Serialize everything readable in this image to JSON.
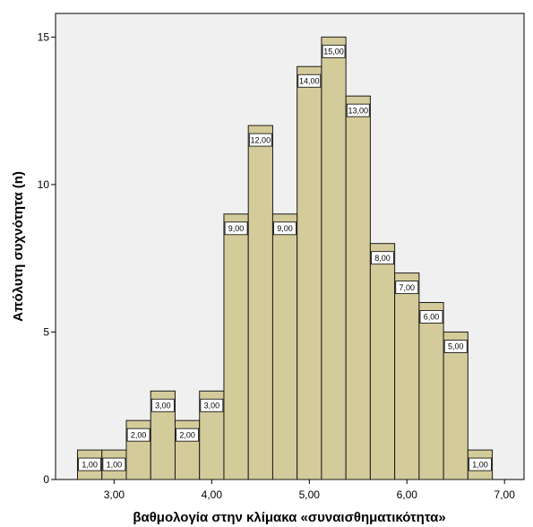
{
  "chart_data": {
    "type": "bar",
    "subtype": "histogram",
    "bins": [
      {
        "start": 2.625,
        "end": 2.875,
        "value": 1,
        "label": "1,00"
      },
      {
        "start": 2.875,
        "end": 3.125,
        "value": 1,
        "label": "1,00"
      },
      {
        "start": 3.125,
        "end": 3.375,
        "value": 2,
        "label": "2,00"
      },
      {
        "start": 3.375,
        "end": 3.625,
        "value": 3,
        "label": "3,00"
      },
      {
        "start": 3.625,
        "end": 3.875,
        "value": 2,
        "label": "2,00"
      },
      {
        "start": 3.875,
        "end": 4.125,
        "value": 3,
        "label": "3,00"
      },
      {
        "start": 4.125,
        "end": 4.375,
        "value": 9,
        "label": "9,00"
      },
      {
        "start": 4.375,
        "end": 4.625,
        "value": 12,
        "label": "12,00"
      },
      {
        "start": 4.625,
        "end": 4.875,
        "value": 9,
        "label": "9,00"
      },
      {
        "start": 4.875,
        "end": 5.125,
        "value": 14,
        "label": "14,00"
      },
      {
        "start": 5.125,
        "end": 5.375,
        "value": 15,
        "label": "15,00"
      },
      {
        "start": 5.375,
        "end": 5.625,
        "value": 13,
        "label": "13,00"
      },
      {
        "start": 5.625,
        "end": 5.875,
        "value": 8,
        "label": "8,00"
      },
      {
        "start": 5.875,
        "end": 6.125,
        "value": 7,
        "label": "7,00"
      },
      {
        "start": 6.125,
        "end": 6.375,
        "value": 6,
        "label": "6,00"
      },
      {
        "start": 6.375,
        "end": 6.625,
        "value": 5,
        "label": "5,00"
      },
      {
        "start": 6.625,
        "end": 6.875,
        "value": 1,
        "label": "1,00"
      }
    ],
    "xlabel": "βαθμολογία στην κλίμακα «συναισθηματικότητα»",
    "ylabel": "Απόλυτη συχνότητα (n)",
    "x_ticks": [
      {
        "value": 3,
        "label": "3,00"
      },
      {
        "value": 4,
        "label": "4,00"
      },
      {
        "value": 5,
        "label": "5,00"
      },
      {
        "value": 6,
        "label": "6,00"
      },
      {
        "value": 7,
        "label": "7,00"
      }
    ],
    "y_ticks": [
      {
        "value": 0,
        "label": "0"
      },
      {
        "value": 5,
        "label": "5"
      },
      {
        "value": 10,
        "label": "10"
      },
      {
        "value": 15,
        "label": "15"
      }
    ],
    "xlim": [
      2.4,
      7.2
    ],
    "ylim": [
      0,
      15.8
    ],
    "grid": false,
    "colors": {
      "bar_fill": "#d4cb9b",
      "bar_stroke": "#1a1a1a",
      "plot_background": "#f0f0f0",
      "page_background": "#ffffff",
      "label_box_fill": "#ffffff"
    }
  }
}
